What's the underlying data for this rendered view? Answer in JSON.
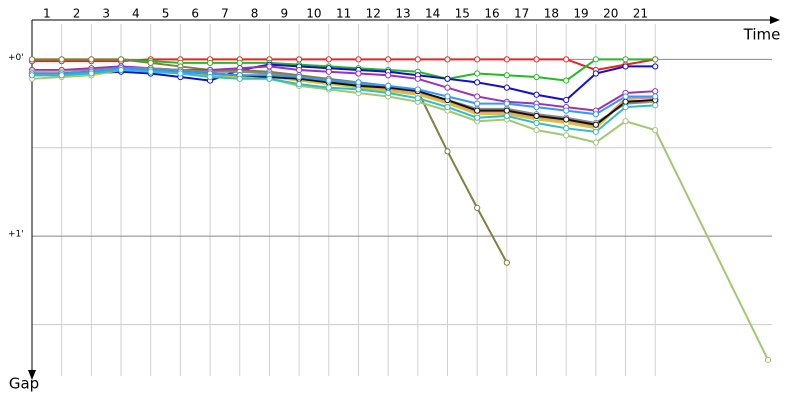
{
  "chart_data": {
    "type": "line",
    "x_label": "Time",
    "y_label": "Gap",
    "x": [
      0,
      1,
      2,
      3,
      4,
      5,
      6,
      7,
      8,
      9,
      10,
      11,
      12,
      13,
      14,
      15,
      16,
      17,
      18,
      19,
      20,
      21,
      24.8
    ],
    "xlim": [
      0,
      24.8
    ],
    "xticks": [
      1,
      2,
      3,
      4,
      5,
      6,
      7,
      8,
      9,
      10,
      11,
      12,
      13,
      14,
      15,
      16,
      17,
      18,
      19,
      20,
      21
    ],
    "ylim": [
      -0.2,
      1.87
    ],
    "yticks": [
      {
        "value": 0,
        "label": "+0'"
      },
      {
        "value": 1,
        "label": "+1'"
      }
    ],
    "yminor": [
      0.5,
      1.5
    ],
    "grid": true,
    "series": [
      {
        "name": "red",
        "color": "#ee2222",
        "values": [
          0.01,
          0.01,
          0.01,
          0.01,
          0,
          0,
          0,
          0,
          0,
          0,
          0,
          0,
          0,
          0,
          0,
          0,
          0,
          0,
          0,
          0.06,
          0.03,
          0,
          null
        ]
      },
      {
        "name": "green",
        "color": "#22bb22",
        "values": [
          0,
          0,
          0,
          0,
          0.01,
          0.02,
          0.02,
          0.02,
          0.02,
          0.03,
          0.04,
          0.05,
          0.06,
          0.07,
          0.11,
          0.08,
          0.09,
          0.1,
          0.12,
          0,
          0,
          0,
          null
        ]
      },
      {
        "name": "blue",
        "color": "#1111cc",
        "values": [
          0.09,
          0.09,
          0.08,
          0.07,
          0.08,
          0.1,
          0.12,
          0.06,
          0.03,
          0.04,
          0.05,
          0.06,
          0.07,
          0.09,
          0.11,
          0.13,
          0.16,
          0.2,
          0.23,
          0.08,
          0.04,
          0.04,
          null
        ]
      },
      {
        "name": "olive",
        "color": "#808040",
        "values": [
          0,
          0,
          0,
          0,
          0.02,
          0.04,
          0.06,
          0.06,
          0.07,
          0.09,
          0.11,
          0.13,
          0.15,
          0.18,
          0.52,
          0.84,
          1.15,
          null,
          null,
          null,
          null,
          null,
          null
        ]
      },
      {
        "name": "light-green",
        "color": "#a0c870",
        "values": [
          0.11,
          0.1,
          0.09,
          0.06,
          0.06,
          0.07,
          0.09,
          0.1,
          0.11,
          0.15,
          0.17,
          0.19,
          0.21,
          0.24,
          0.29,
          0.35,
          0.34,
          0.4,
          0.43,
          0.47,
          0.35,
          0.4,
          1.7
        ]
      },
      {
        "name": "purple",
        "color": "#9933bb",
        "values": [
          0.06,
          0.06,
          0.05,
          0.04,
          0.05,
          0.06,
          0.06,
          0.05,
          0.04,
          0.06,
          0.07,
          0.08,
          0.09,
          0.11,
          0.16,
          0.21,
          0.24,
          0.25,
          0.27,
          0.29,
          0.19,
          0.18,
          null
        ]
      },
      {
        "name": "gray",
        "color": "#888888",
        "values": [
          0.07,
          0.07,
          0.06,
          0.05,
          0.05,
          0.06,
          0.07,
          0.07,
          0.08,
          0.1,
          0.12,
          0.14,
          0.16,
          0.18,
          0.23,
          0.28,
          0.28,
          0.31,
          0.33,
          0.36,
          0.25,
          0.24,
          null
        ]
      },
      {
        "name": "salmon",
        "color": "#ee9977",
        "values": [
          0.07,
          0.07,
          0.07,
          0.06,
          0.06,
          0.07,
          0.08,
          0.09,
          0.09,
          0.11,
          0.13,
          0.15,
          0.17,
          0.19,
          0.24,
          0.3,
          0.3,
          0.33,
          0.35,
          0.38,
          0.22,
          0.22,
          null
        ]
      },
      {
        "name": "yellow",
        "color": "#cccc33",
        "values": [
          0.09,
          0.09,
          0.09,
          0.06,
          0.06,
          0.07,
          0.08,
          0.1,
          0.1,
          0.12,
          0.14,
          0.16,
          0.18,
          0.2,
          0.25,
          0.31,
          0.31,
          0.34,
          0.36,
          0.39,
          0.23,
          0.24,
          null
        ]
      },
      {
        "name": "black",
        "color": "#111111",
        "values": [
          0.08,
          0.08,
          0.07,
          0.06,
          0.06,
          0.07,
          0.08,
          0.09,
          0.1,
          0.11,
          0.13,
          0.15,
          0.16,
          0.18,
          0.23,
          0.29,
          0.29,
          0.32,
          0.34,
          0.37,
          0.24,
          0.23,
          null
        ]
      },
      {
        "name": "sky-blue",
        "color": "#3399ff",
        "values": [
          0.08,
          0.08,
          0.07,
          0.05,
          0.06,
          0.07,
          0.08,
          0.09,
          0.09,
          0.1,
          0.12,
          0.13,
          0.15,
          0.17,
          0.21,
          0.25,
          0.25,
          0.27,
          0.29,
          0.31,
          0.21,
          0.21,
          null
        ]
      },
      {
        "name": "cyan",
        "color": "#33bbcc",
        "values": [
          0.09,
          0.09,
          0.08,
          0.06,
          0.07,
          0.08,
          0.1,
          0.11,
          0.11,
          0.14,
          0.16,
          0.17,
          0.19,
          0.22,
          0.27,
          0.33,
          0.32,
          0.36,
          0.39,
          0.41,
          0.27,
          0.26,
          null
        ]
      }
    ]
  }
}
